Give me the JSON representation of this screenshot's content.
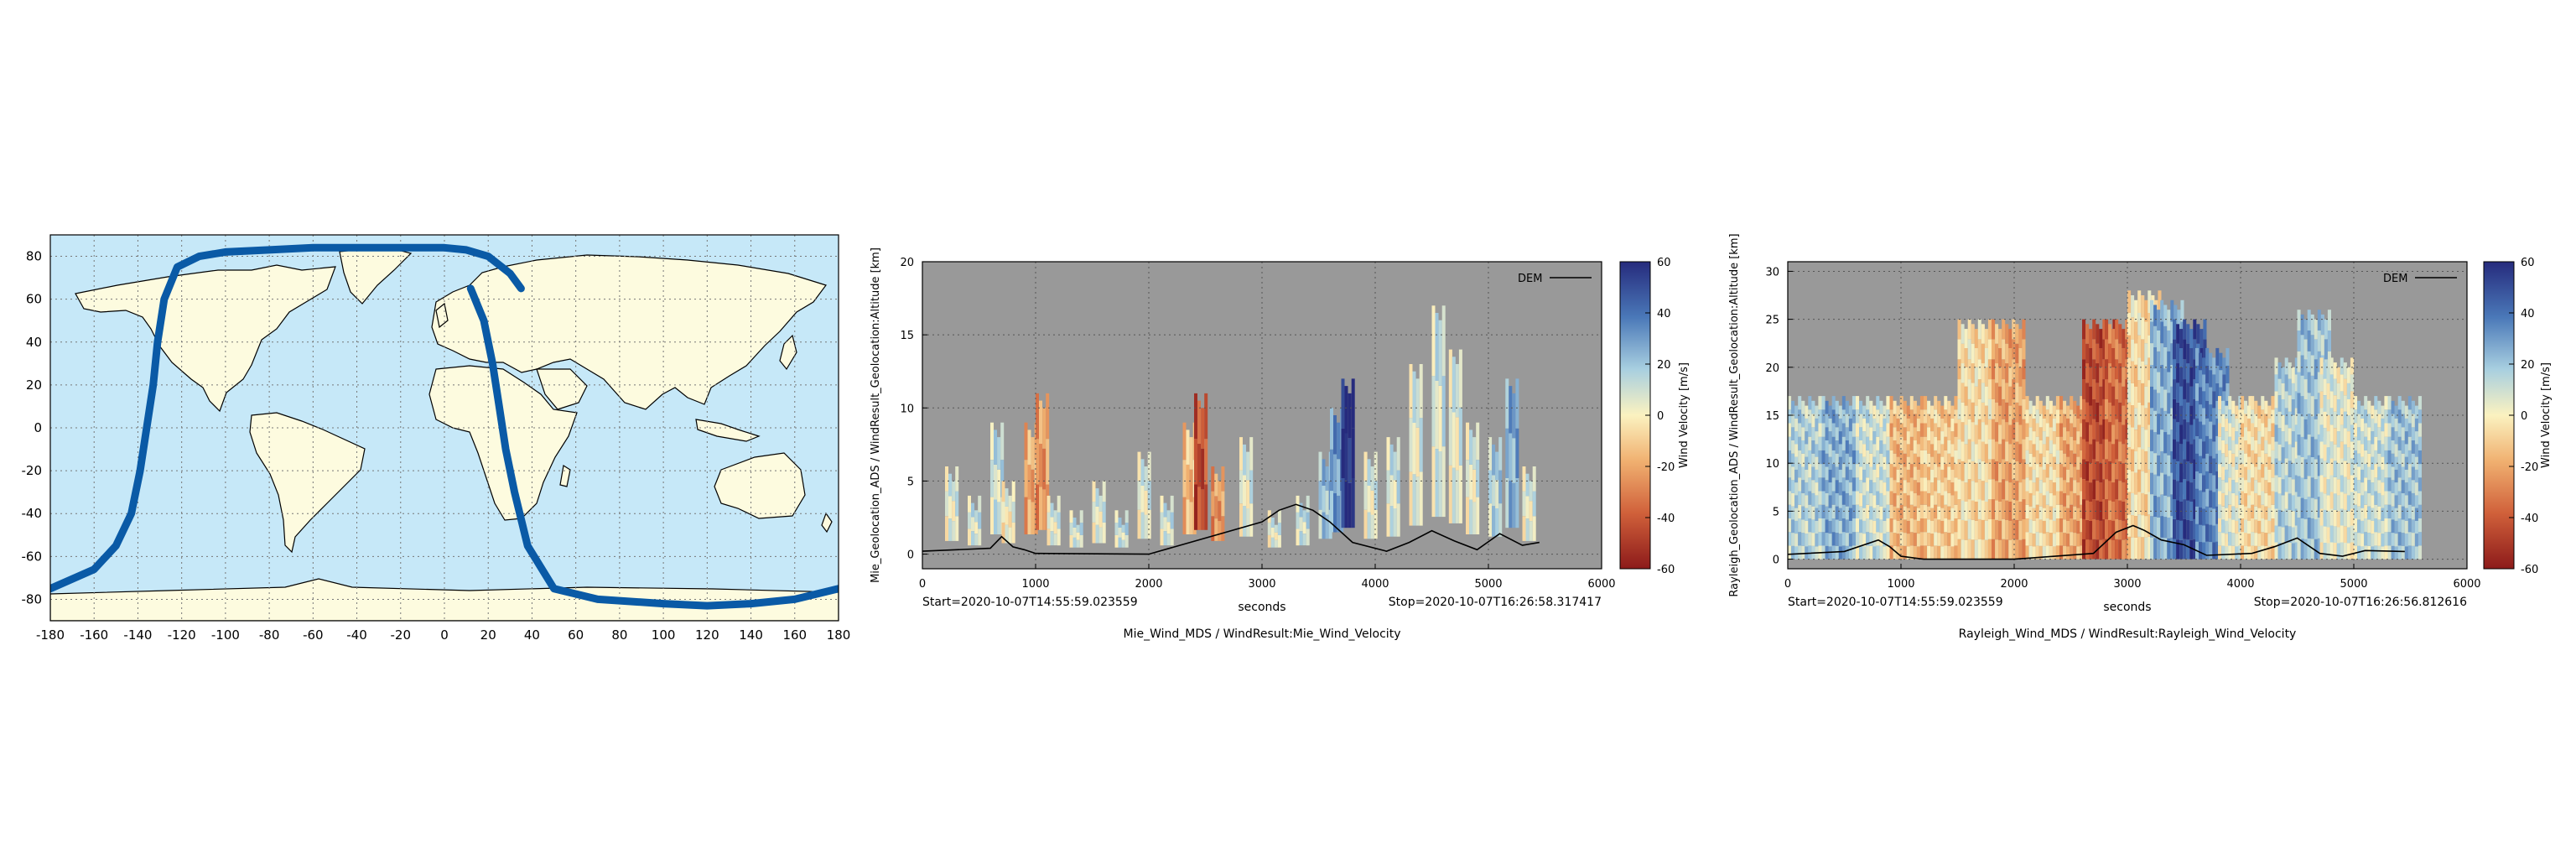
{
  "colors": {
    "ocean": "#c6e8f8",
    "land": "#fdfbdf",
    "track": "#0a5aa6",
    "plot_bg": "#999999",
    "dem_line": "#000000"
  },
  "chart_data": [
    {
      "type": "scatter",
      "panel": "ground-track-map",
      "xlabel": "",
      "ylabel": "",
      "xlim": [
        -180,
        180
      ],
      "ylim": [
        -90,
        90
      ],
      "xticks": [
        -180,
        -160,
        -140,
        -120,
        -100,
        -80,
        -60,
        -40,
        -20,
        0,
        20,
        40,
        60,
        80,
        100,
        120,
        140,
        160,
        180
      ],
      "yticks": [
        -80,
        -60,
        -40,
        -20,
        0,
        20,
        40,
        60,
        80
      ],
      "grid": true,
      "series": [
        {
          "x": [
            -180,
            -160,
            -150,
            -143,
            -139,
            -136,
            -133,
            -131,
            -128,
            -122,
            -112,
            -100,
            -80,
            -60,
            -40,
            -20,
            0,
            10,
            20,
            30,
            35
          ],
          "y": [
            -75,
            -66,
            -55,
            -40,
            -20,
            0,
            20,
            40,
            60,
            75,
            80,
            82,
            83,
            84,
            84,
            84,
            84,
            83,
            80,
            72,
            65
          ]
        },
        {
          "x": [
            12,
            18,
            22,
            25,
            28,
            32,
            38,
            50,
            70,
            100,
            120,
            140,
            160,
            180
          ],
          "y": [
            65,
            50,
            30,
            10,
            -10,
            -30,
            -55,
            -75,
            -80,
            -82,
            -83,
            -82,
            -80,
            -75
          ]
        }
      ]
    },
    {
      "type": "heatmap",
      "panel": "mie-wind-curtain",
      "title": "Mie_Wind_MDS / WindResult:Mie_Wind_Velocity",
      "xlabel": "seconds",
      "ylabel": "Mie_Geolocation_ADS / WindResult_Geolocation:Altitude [km]",
      "xlim": [
        0,
        6000
      ],
      "ylim": [
        -1,
        20
      ],
      "xticks": [
        0,
        1000,
        2000,
        3000,
        4000,
        5000,
        6000
      ],
      "yticks": [
        0,
        5,
        10,
        15,
        20
      ],
      "grid": true,
      "start_label": "Start=2020-10-07T14:55:59.023559",
      "stop_label": "Stop=2020-10-07T16:26:58.317417",
      "legend": {
        "entry": "DEM",
        "placement": "top-right"
      },
      "colorbar": {
        "label": "Wind Velocity [m/s]",
        "range": [
          -60,
          60
        ],
        "ticks": [
          60,
          40,
          20,
          0,
          -20,
          -40,
          -60
        ]
      },
      "dem_series": {
        "name": "DEM",
        "x": [
          0,
          600,
          700,
          800,
          900,
          1000,
          2000,
          3000,
          3150,
          3300,
          3450,
          3600,
          3800,
          4100,
          4300,
          4500,
          4700,
          4900,
          5100,
          5300,
          5450
        ],
        "y": [
          0.2,
          0.4,
          1.2,
          0.5,
          0.3,
          0.05,
          0,
          2.2,
          3.0,
          3.4,
          3.0,
          2.2,
          0.8,
          0.2,
          0.8,
          1.6,
          0.9,
          0.3,
          1.4,
          0.6,
          0.8
        ]
      },
      "wind_columns": [
        {
          "x": 200,
          "top": 6,
          "value": 5
        },
        {
          "x": 400,
          "top": 4,
          "value": 8
        },
        {
          "x": 600,
          "top": 9,
          "value": 10
        },
        {
          "x": 700,
          "top": 5,
          "value": 0
        },
        {
          "x": 900,
          "top": 9,
          "value": -20
        },
        {
          "x": 1000,
          "top": 11,
          "value": -25
        },
        {
          "x": 1100,
          "top": 4,
          "value": 5
        },
        {
          "x": 1300,
          "top": 3,
          "value": 8
        },
        {
          "x": 1500,
          "top": 5,
          "value": 5
        },
        {
          "x": 1700,
          "top": 3,
          "value": 10
        },
        {
          "x": 1900,
          "top": 7,
          "value": 5
        },
        {
          "x": 2100,
          "top": 4,
          "value": 8
        },
        {
          "x": 2300,
          "top": 9,
          "value": -15
        },
        {
          "x": 2400,
          "top": 11,
          "value": -45
        },
        {
          "x": 2550,
          "top": 6,
          "value": -25
        },
        {
          "x": 2800,
          "top": 8,
          "value": 5
        },
        {
          "x": 3050,
          "top": 3,
          "value": 5
        },
        {
          "x": 3300,
          "top": 4,
          "value": 10
        },
        {
          "x": 3500,
          "top": 7,
          "value": 20
        },
        {
          "x": 3600,
          "top": 10,
          "value": 30
        },
        {
          "x": 3700,
          "top": 12,
          "value": 60
        },
        {
          "x": 3900,
          "top": 7,
          "value": 5
        },
        {
          "x": 4100,
          "top": 8,
          "value": 8
        },
        {
          "x": 4300,
          "top": 13,
          "value": 5
        },
        {
          "x": 4500,
          "top": 17,
          "value": 8
        },
        {
          "x": 4650,
          "top": 14,
          "value": 5
        },
        {
          "x": 4800,
          "top": 9,
          "value": 5
        },
        {
          "x": 5000,
          "top": 8,
          "value": 15
        },
        {
          "x": 5150,
          "top": 12,
          "value": 25
        },
        {
          "x": 5300,
          "top": 6,
          "value": 5
        }
      ]
    },
    {
      "type": "heatmap",
      "panel": "rayleigh-wind-curtain",
      "title": "Rayleigh_Wind_MDS / WindResult:Rayleigh_Wind_Velocity",
      "xlabel": "seconds",
      "ylabel": "Rayleigh_Geolocation_ADS / WindResult_Geolocation:Altitude [km]",
      "xlim": [
        0,
        6000
      ],
      "ylim": [
        -1,
        31
      ],
      "xticks": [
        0,
        1000,
        2000,
        3000,
        4000,
        5000,
        6000
      ],
      "yticks": [
        0,
        5,
        10,
        15,
        20,
        25,
        30
      ],
      "grid": true,
      "start_label": "Start=2020-10-07T14:55:59.023559",
      "stop_label": "Stop=2020-10-07T16:26:56.812616",
      "legend": {
        "entry": "DEM",
        "placement": "top-right"
      },
      "colorbar": {
        "label": "Wind Velocity [m/s]",
        "range": [
          -60,
          60
        ],
        "ticks": [
          60,
          40,
          20,
          0,
          -20,
          -40,
          -60
        ]
      },
      "dem_series": {
        "name": "DEM",
        "x": [
          0,
          500,
          800,
          900,
          1000,
          1200,
          2000,
          2700,
          2900,
          3050,
          3150,
          3300,
          3500,
          3700,
          4100,
          4300,
          4500,
          4700,
          4900,
          5100,
          5450
        ],
        "y": [
          0.5,
          0.8,
          2.0,
          1.3,
          0.3,
          0,
          0,
          0.6,
          2.8,
          3.5,
          3.0,
          2.0,
          1.5,
          0.4,
          0.6,
          1.3,
          2.2,
          0.6,
          0.3,
          0.9,
          0.8
        ]
      },
      "wind_columns": [
        {
          "x": 0,
          "top": 17,
          "value": 15
        },
        {
          "x": 300,
          "top": 17,
          "value": 25
        },
        {
          "x": 600,
          "top": 17,
          "value": 10
        },
        {
          "x": 900,
          "top": 17,
          "value": -15
        },
        {
          "x": 1200,
          "top": 17,
          "value": -10
        },
        {
          "x": 1500,
          "top": 25,
          "value": -5
        },
        {
          "x": 1800,
          "top": 25,
          "value": -20
        },
        {
          "x": 2100,
          "top": 17,
          "value": -5
        },
        {
          "x": 2400,
          "top": 17,
          "value": -20
        },
        {
          "x": 2600,
          "top": 25,
          "value": -45
        },
        {
          "x": 2800,
          "top": 25,
          "value": -35
        },
        {
          "x": 3000,
          "top": 28,
          "value": -5
        },
        {
          "x": 3200,
          "top": 27,
          "value": 25
        },
        {
          "x": 3400,
          "top": 25,
          "value": 50
        },
        {
          "x": 3600,
          "top": 22,
          "value": 35
        },
        {
          "x": 3800,
          "top": 17,
          "value": 5
        },
        {
          "x": 4000,
          "top": 17,
          "value": -5
        },
        {
          "x": 4300,
          "top": 21,
          "value": 15
        },
        {
          "x": 4500,
          "top": 26,
          "value": 20
        },
        {
          "x": 4700,
          "top": 21,
          "value": 5
        },
        {
          "x": 5000,
          "top": 17,
          "value": 10
        },
        {
          "x": 5300,
          "top": 17,
          "value": 20
        }
      ]
    }
  ]
}
